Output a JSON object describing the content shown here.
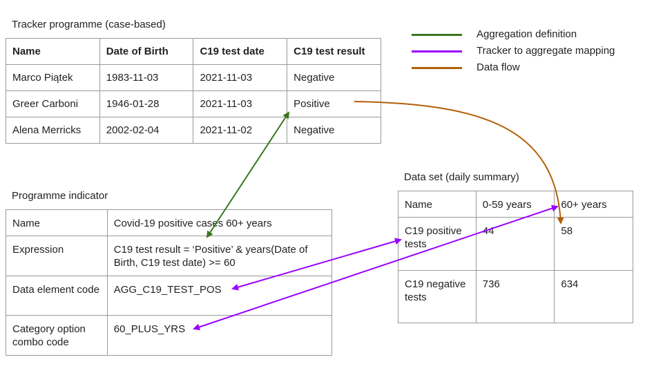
{
  "tracker": {
    "caption": "Tracker programme (case-based)",
    "headers": [
      "Name",
      "Date of Birth",
      "C19 test date",
      "C19 test result"
    ],
    "rows": [
      [
        "Marco Piątek",
        "1983-11-03",
        "2021-11-03",
        "Negative"
      ],
      [
        "Greer Carboni",
        "1946-01-28",
        "2021-11-03",
        "Positive"
      ],
      [
        "Alena Merricks",
        "2002-02-04",
        "2021-11-02",
        "Negative"
      ]
    ]
  },
  "indicator": {
    "caption": "Programme indicator",
    "rows": [
      [
        "Name",
        "Covid-19 positive cases 60+ years"
      ],
      [
        "Expression",
        "C19 test result = ‘Positive’ & years(Date of Birth, C19 test date) >= 60"
      ],
      [
        "Data element code",
        "AGG_C19_TEST_POS"
      ],
      [
        "Category option combo code",
        "60_PLUS_YRS"
      ]
    ]
  },
  "dataset": {
    "caption": "Data set (daily summary)",
    "headers": [
      "Name",
      "0-59 years",
      "60+ years"
    ],
    "rows": [
      [
        "C19 positive tests",
        "44",
        "58"
      ],
      [
        "C19 negative tests",
        "736",
        "634"
      ]
    ]
  },
  "legend": [
    {
      "label": "Aggregation definition",
      "color": "#38761d"
    },
    {
      "label": "Tracker to aggregate mapping",
      "color": "#9900ff"
    },
    {
      "label": "Data flow",
      "color": "#b45f06"
    }
  ]
}
